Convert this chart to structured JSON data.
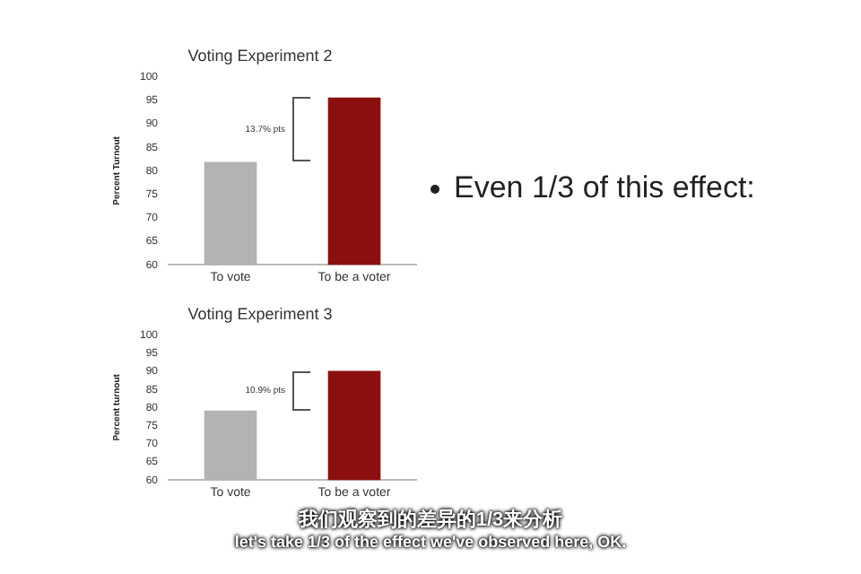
{
  "chart_data": [
    {
      "type": "bar",
      "title": "Voting Experiment 2",
      "ylabel": "Percent Turnout",
      "categories": [
        "To vote",
        "To be a voter"
      ],
      "values": [
        81.9,
        95.6
      ],
      "colors": [
        "#b3b3b3",
        "#8b0f0f"
      ],
      "ylim": [
        60,
        100
      ],
      "yticks": [
        60,
        65,
        70,
        75,
        80,
        85,
        90,
        95,
        100
      ],
      "grid": false,
      "legend": false,
      "annotations": [
        "13.7% pts"
      ]
    },
    {
      "type": "other",
      "annotations": [
        "Even 1/3 of this effect:"
      ]
    },
    {
      "type": "bar",
      "title": "Voting Experiment 3",
      "ylabel": "Percent turnout",
      "categories": [
        "To vote",
        "To be a voter"
      ],
      "values": [
        79.2,
        90.1
      ],
      "colors": [
        "#b3b3b3",
        "#8b0f0f"
      ],
      "ylim": [
        60,
        100
      ],
      "yticks": [
        60,
        65,
        70,
        75,
        80,
        85,
        90,
        95,
        100
      ],
      "grid": false,
      "legend": false,
      "annotations": [
        "10.9% pts"
      ]
    },
    {
      "type": "other",
      "annotations": [
        "我们观察到的差异的1/3来分析",
        "let's take 1/3 of the effect we've observed here, OK."
      ]
    }
  ]
}
